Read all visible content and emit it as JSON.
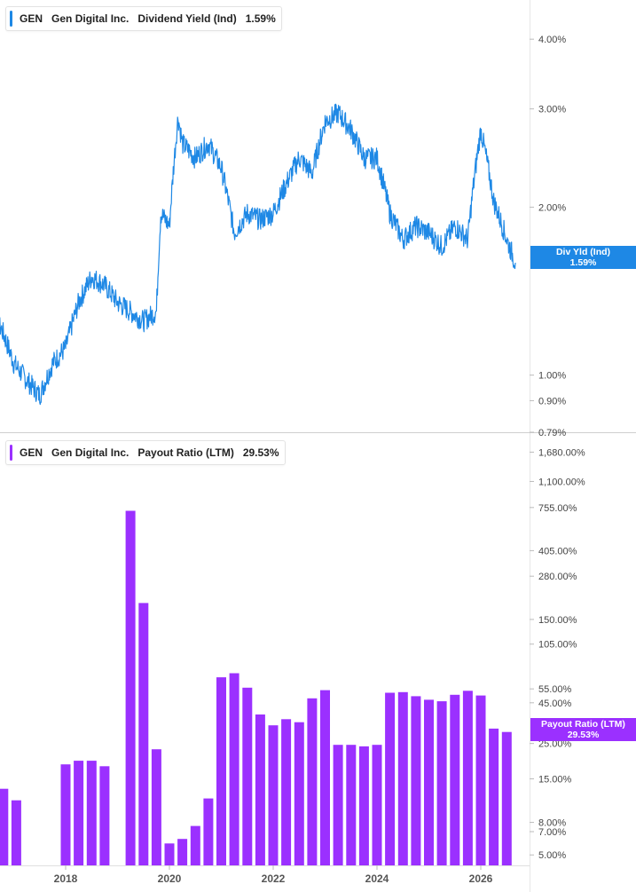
{
  "chart_data": [
    {
      "type": "line",
      "ticker": "GEN",
      "company": "Gen Digital Inc.",
      "metric": "Dividend Yield (Ind)",
      "current_value": "1.59%",
      "tag_label": "Div Yld (Ind)",
      "tag_value": "1.59%",
      "color": "#1e88e5",
      "yscale": "log",
      "ylim": [
        0.79,
        4.6
      ],
      "y_ticks": [
        {
          "v": 4.0,
          "label": "4.00%"
        },
        {
          "v": 3.0,
          "label": "3.00%"
        },
        {
          "v": 2.0,
          "label": "2.00%"
        },
        {
          "v": 1.0,
          "label": "1.00%"
        },
        {
          "v": 0.9,
          "label": "0.90%"
        },
        {
          "v": 0.79,
          "label": "0.79%"
        }
      ],
      "series": [
        {
          "x": [
            "2016-07",
            "2016-10",
            "2017-01",
            "2017-04",
            "2017-07",
            "2017-10",
            "2018-01",
            "2018-04",
            "2018-07",
            "2018-10",
            "2019-01",
            "2019-04",
            "2019-07",
            "2019-10",
            "2019-11",
            "2020-01",
            "2020-03",
            "2020-04",
            "2020-07",
            "2020-10",
            "2021-01",
            "2021-04",
            "2021-07",
            "2021-10",
            "2022-01",
            "2022-04",
            "2022-07",
            "2022-10",
            "2023-01",
            "2023-04",
            "2023-07",
            "2023-10",
            "2024-01",
            "2024-04",
            "2024-07",
            "2024-10",
            "2025-01",
            "2025-04",
            "2025-07",
            "2025-10",
            "2026-01",
            "2026-04",
            "2026-07",
            "2026-09"
          ],
          "values": [
            1.18,
            1.22,
            1.05,
            0.98,
            0.92,
            1.05,
            1.12,
            1.35,
            1.5,
            1.45,
            1.35,
            1.3,
            1.25,
            1.3,
            1.95,
            1.85,
            2.9,
            2.6,
            2.45,
            2.6,
            2.35,
            1.8,
            1.95,
            1.9,
            1.95,
            2.2,
            2.45,
            2.3,
            2.85,
            2.95,
            2.75,
            2.45,
            2.45,
            1.95,
            1.75,
            1.85,
            1.8,
            1.7,
            1.85,
            1.75,
            2.75,
            2.05,
            1.75,
            1.59
          ]
        }
      ]
    },
    {
      "type": "bar",
      "ticker": "GEN",
      "company": "Gen Digital Inc.",
      "metric": "Payout Ratio (LTM)",
      "current_value": "29.53%",
      "tag_label": "Payout Ratio (LTM)",
      "tag_value": "29.53%",
      "color": "#9b30ff",
      "yscale": "log",
      "ylim": [
        4.3,
        2100
      ],
      "y_ticks": [
        {
          "v": 1680,
          "label": "1,680.00%"
        },
        {
          "v": 1100,
          "label": "1,100.00%"
        },
        {
          "v": 755,
          "label": "755.00%"
        },
        {
          "v": 405,
          "label": "405.00%"
        },
        {
          "v": 280,
          "label": "280.00%"
        },
        {
          "v": 150,
          "label": "150.00%"
        },
        {
          "v": 105,
          "label": "105.00%"
        },
        {
          "v": 55,
          "label": "55.00%"
        },
        {
          "v": 45,
          "label": "45.00%"
        },
        {
          "v": 25,
          "label": "25.00%"
        },
        {
          "v": 15,
          "label": "15.00%"
        },
        {
          "v": 8,
          "label": "8.00%"
        },
        {
          "v": 7,
          "label": "7.00%"
        },
        {
          "v": 5,
          "label": "5.00%"
        }
      ],
      "x_ticks": [
        "2018",
        "2020",
        "2022",
        "2024",
        "2026"
      ],
      "x_tick_values": [
        2018.0,
        2020.0,
        2022.0,
        2024.0,
        2026.0
      ],
      "bars": [
        {
          "t": 2016.8,
          "v": 13
        },
        {
          "t": 2017.05,
          "v": 11
        },
        {
          "t": 2018.0,
          "v": 18.5
        },
        {
          "t": 2018.25,
          "v": 19.5
        },
        {
          "t": 2018.5,
          "v": 19.5
        },
        {
          "t": 2018.75,
          "v": 18
        },
        {
          "t": 2019.25,
          "v": 720
        },
        {
          "t": 2019.5,
          "v": 190
        },
        {
          "t": 2019.75,
          "v": 23
        },
        {
          "t": 2020.0,
          "v": 5.9
        },
        {
          "t": 2020.25,
          "v": 6.3
        },
        {
          "t": 2020.5,
          "v": 7.6
        },
        {
          "t": 2020.75,
          "v": 11.3
        },
        {
          "t": 2021.0,
          "v": 65
        },
        {
          "t": 2021.25,
          "v": 69
        },
        {
          "t": 2021.5,
          "v": 56
        },
        {
          "t": 2021.75,
          "v": 38
        },
        {
          "t": 2022.0,
          "v": 32.5
        },
        {
          "t": 2022.25,
          "v": 35.5
        },
        {
          "t": 2022.5,
          "v": 34
        },
        {
          "t": 2022.75,
          "v": 48
        },
        {
          "t": 2023.0,
          "v": 54
        },
        {
          "t": 2023.25,
          "v": 24.5
        },
        {
          "t": 2023.5,
          "v": 24.5
        },
        {
          "t": 2023.75,
          "v": 24
        },
        {
          "t": 2024.0,
          "v": 24.5
        },
        {
          "t": 2024.25,
          "v": 52
        },
        {
          "t": 2024.5,
          "v": 52.5
        },
        {
          "t": 2024.75,
          "v": 49.5
        },
        {
          "t": 2025.0,
          "v": 47
        },
        {
          "t": 2025.25,
          "v": 46
        },
        {
          "t": 2025.5,
          "v": 50.5
        },
        {
          "t": 2025.75,
          "v": 53.5
        },
        {
          "t": 2026.0,
          "v": 50
        },
        {
          "t": 2026.25,
          "v": 31
        },
        {
          "t": 2026.5,
          "v": 29.53
        }
      ]
    }
  ]
}
